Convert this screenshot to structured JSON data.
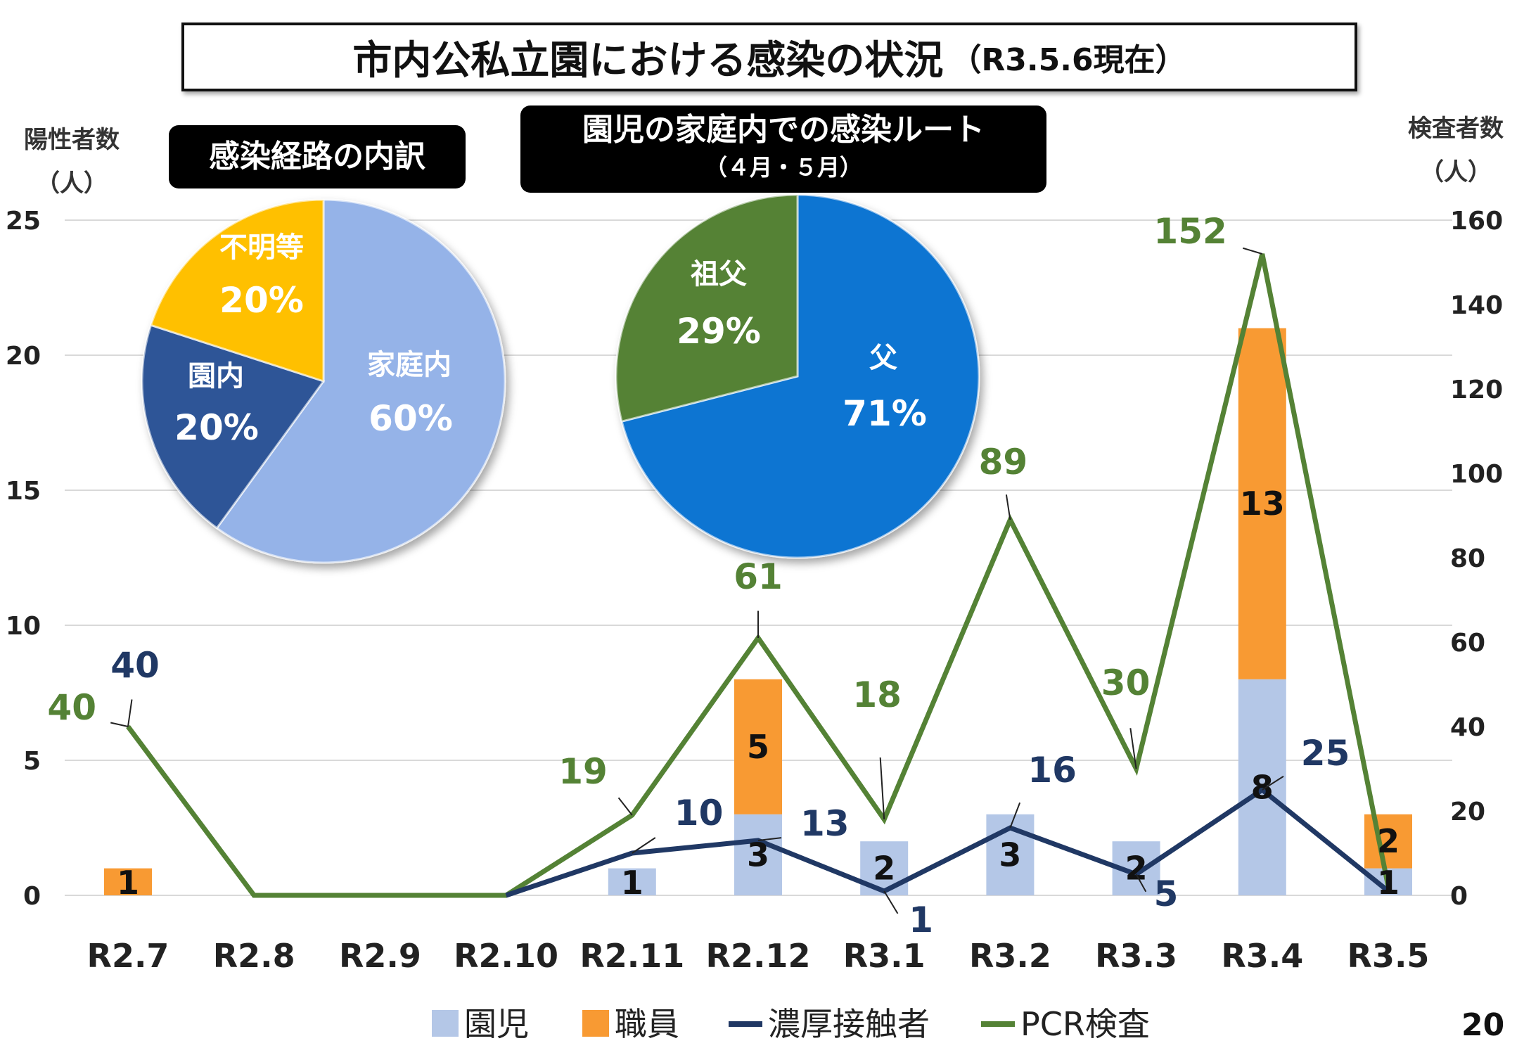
{
  "title": {
    "main": "市内公私立園における感染の状況",
    "sub": "（R3.5.6現在）"
  },
  "left_axis": {
    "label_line1": "陽性者数",
    "label_line2": "（人）"
  },
  "right_axis": {
    "label_line1": "検査者数",
    "label_line2": "（人）"
  },
  "pie1": {
    "heading": "感染経路の内訳",
    "slices": [
      {
        "label": "家庭内",
        "pct_label": "60%",
        "value": 60,
        "color": "#95b3e8"
      },
      {
        "label": "園内",
        "pct_label": "20%",
        "value": 20,
        "color": "#2e5597"
      },
      {
        "label": "不明等",
        "pct_label": "20%",
        "value": 20,
        "color": "#ffc000"
      }
    ]
  },
  "pie2": {
    "heading_line1": "園児の家庭内での感染ルート",
    "heading_line2": "（４月・５月）",
    "slices": [
      {
        "label": "父",
        "pct_label": "71%",
        "value": 71,
        "color": "#0f74d2"
      },
      {
        "label": "祖父",
        "pct_label": "29%",
        "value": 29,
        "color": "#548235"
      }
    ]
  },
  "page_number": "20",
  "chart_data": {
    "type": "bar",
    "categories": [
      "R2.7",
      "R2.8",
      "R2.9",
      "R2.10",
      "R2.11",
      "R2.12",
      "R3.1",
      "R3.2",
      "R3.3",
      "R3.4",
      "R3.5"
    ],
    "series": [
      {
        "name": "園児",
        "kind": "bar",
        "axis": "left",
        "color": "#b4c7e7",
        "values": [
          0,
          0,
          0,
          0,
          1,
          3,
          2,
          3,
          2,
          8,
          1
        ]
      },
      {
        "name": "職員",
        "kind": "bar",
        "axis": "left",
        "color": "#f89a33",
        "values": [
          1,
          0,
          0,
          0,
          0,
          5,
          0,
          0,
          0,
          13,
          2
        ]
      },
      {
        "name": "濃厚接触者",
        "kind": "line",
        "axis": "right",
        "color": "#203864",
        "values": [
          40,
          0,
          0,
          0,
          10,
          13,
          1,
          16,
          5,
          25,
          1
        ]
      },
      {
        "name": "PCR検査",
        "kind": "line",
        "axis": "right",
        "color": "#548235",
        "values": [
          40,
          0,
          0,
          0,
          19,
          61,
          18,
          89,
          30,
          152,
          2
        ]
      }
    ],
    "left_axis": {
      "ticks": [
        "0",
        "5",
        "10",
        "15",
        "20",
        "25"
      ],
      "ylim": [
        0,
        25
      ]
    },
    "right_axis": {
      "ticks": [
        "0",
        "20",
        "40",
        "60",
        "80",
        "100",
        "120",
        "140",
        "160"
      ],
      "ylim": [
        0,
        160
      ]
    },
    "bar_labels": {
      "園児": [
        "",
        "",
        "",
        "",
        "1",
        "3",
        "2",
        "3",
        "2",
        "8",
        "1"
      ],
      "職員": [
        "1",
        "",
        "",
        "",
        "",
        "5",
        "",
        "",
        "",
        "13",
        "2"
      ]
    },
    "line_labels": {
      "濃厚接触者": [
        "40",
        "",
        "",
        "",
        "10",
        "13",
        "1",
        "16",
        "5",
        "25",
        ""
      ],
      "PCR検査": [
        "40",
        "",
        "",
        "",
        "19",
        "61",
        "18",
        "89",
        "30",
        "152",
        ""
      ]
    },
    "grid": true,
    "legend_position": "bottom"
  }
}
